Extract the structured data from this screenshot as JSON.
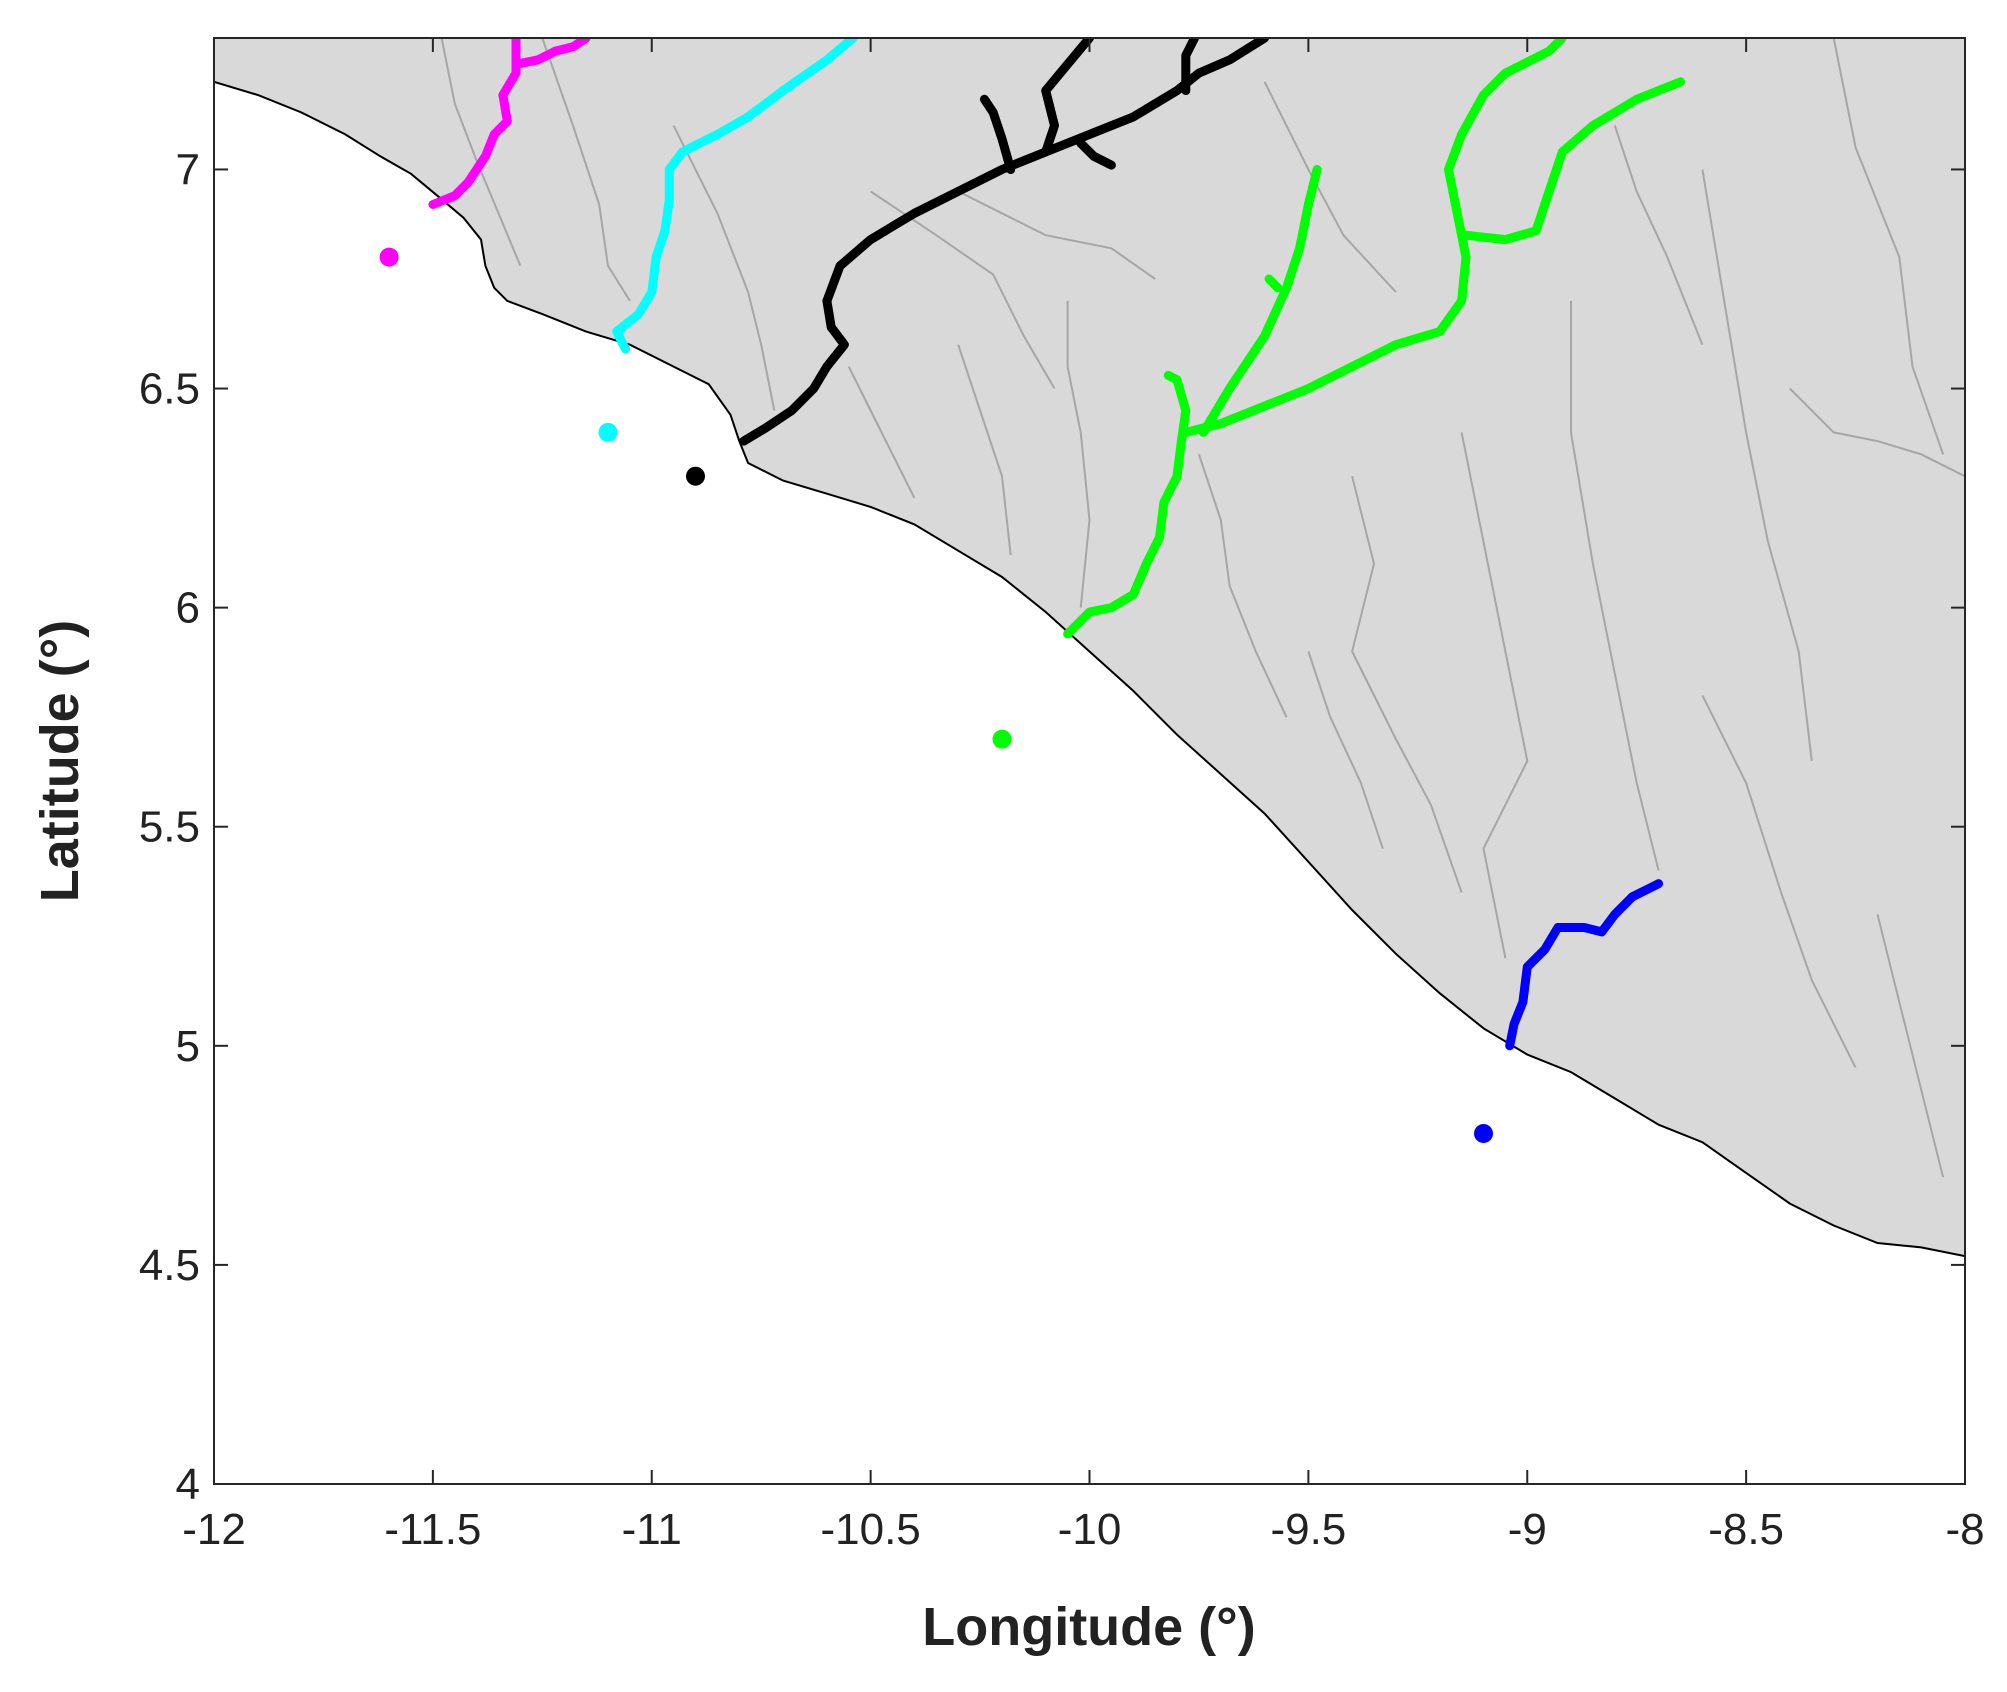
{
  "chart_data": {
    "type": "map",
    "xlabel": "Longitude (°)",
    "ylabel": "Latitude (°)",
    "xlim": [
      -12,
      -8
    ],
    "ylim": [
      4,
      7.3
    ],
    "xticks": [
      -12,
      -11.5,
      -11,
      -10.5,
      -10,
      -9.5,
      -9,
      -8.5,
      -8
    ],
    "xtick_labels": [
      "-12",
      "-11.5",
      "-11",
      "-10.5",
      "-10",
      "-9.5",
      "-9",
      "-8.5",
      "-8"
    ],
    "yticks": [
      4,
      4.5,
      5,
      5.5,
      6,
      6.5,
      7
    ],
    "ytick_labels": [
      "4",
      "4.5",
      "5",
      "5.5",
      "6",
      "6.5",
      "7"
    ],
    "grid": false,
    "land_color": "#d9d9d9",
    "coastline_color": "#000000",
    "minor_river_color": "#a6a6a6",
    "coastline": [
      [
        -12.0,
        7.2
      ],
      [
        -11.9,
        7.17
      ],
      [
        -11.8,
        7.13
      ],
      [
        -11.7,
        7.08
      ],
      [
        -11.62,
        7.03
      ],
      [
        -11.55,
        6.99
      ],
      [
        -11.49,
        6.94
      ],
      [
        -11.43,
        6.89
      ],
      [
        -11.39,
        6.84
      ],
      [
        -11.38,
        6.78
      ],
      [
        -11.36,
        6.73
      ],
      [
        -11.33,
        6.7
      ],
      [
        -11.25,
        6.67
      ],
      [
        -11.15,
        6.63
      ],
      [
        -11.05,
        6.6
      ],
      [
        -10.95,
        6.55
      ],
      [
        -10.87,
        6.51
      ],
      [
        -10.82,
        6.44
      ],
      [
        -10.8,
        6.38
      ],
      [
        -10.78,
        6.33
      ],
      [
        -10.7,
        6.29
      ],
      [
        -10.6,
        6.26
      ],
      [
        -10.5,
        6.23
      ],
      [
        -10.4,
        6.19
      ],
      [
        -10.3,
        6.13
      ],
      [
        -10.2,
        6.07
      ],
      [
        -10.1,
        5.99
      ],
      [
        -10.0,
        5.9
      ],
      [
        -9.9,
        5.81
      ],
      [
        -9.8,
        5.71
      ],
      [
        -9.7,
        5.62
      ],
      [
        -9.6,
        5.53
      ],
      [
        -9.5,
        5.42
      ],
      [
        -9.4,
        5.31
      ],
      [
        -9.3,
        5.21
      ],
      [
        -9.2,
        5.12
      ],
      [
        -9.1,
        5.04
      ],
      [
        -9.0,
        4.98
      ],
      [
        -8.9,
        4.94
      ],
      [
        -8.8,
        4.88
      ],
      [
        -8.7,
        4.82
      ],
      [
        -8.6,
        4.78
      ],
      [
        -8.5,
        4.71
      ],
      [
        -8.4,
        4.64
      ],
      [
        -8.3,
        4.59
      ],
      [
        -8.2,
        4.55
      ],
      [
        -8.1,
        4.54
      ],
      [
        -8.0,
        4.52
      ]
    ],
    "minor_rivers": [
      [
        [
          -11.48,
          7.3
        ],
        [
          -11.45,
          7.15
        ],
        [
          -11.4,
          7.02
        ],
        [
          -11.35,
          6.9
        ],
        [
          -11.3,
          6.78
        ]
      ],
      [
        [
          -11.25,
          7.3
        ],
        [
          -11.18,
          7.1
        ],
        [
          -11.12,
          6.92
        ],
        [
          -11.1,
          6.78
        ],
        [
          -11.05,
          6.7
        ]
      ],
      [
        [
          -10.95,
          7.1
        ],
        [
          -10.85,
          6.9
        ],
        [
          -10.78,
          6.72
        ],
        [
          -10.75,
          6.6
        ],
        [
          -10.72,
          6.45
        ]
      ],
      [
        [
          -10.5,
          6.95
        ],
        [
          -10.35,
          6.85
        ],
        [
          -10.22,
          6.76
        ],
        [
          -10.15,
          6.62
        ],
        [
          -10.08,
          6.5
        ]
      ],
      [
        [
          -10.55,
          6.55
        ],
        [
          -10.5,
          6.45
        ],
        [
          -10.45,
          6.35
        ],
        [
          -10.4,
          6.25
        ]
      ],
      [
        [
          -10.3,
          6.6
        ],
        [
          -10.25,
          6.45
        ],
        [
          -10.2,
          6.3
        ],
        [
          -10.18,
          6.12
        ]
      ],
      [
        [
          -10.05,
          6.7
        ],
        [
          -10.05,
          6.55
        ],
        [
          -10.02,
          6.4
        ],
        [
          -10.0,
          6.2
        ],
        [
          -10.02,
          6.0
        ]
      ],
      [
        [
          -9.75,
          6.35
        ],
        [
          -9.7,
          6.2
        ],
        [
          -9.68,
          6.05
        ],
        [
          -9.62,
          5.9
        ],
        [
          -9.55,
          5.75
        ]
      ],
      [
        [
          -9.4,
          6.3
        ],
        [
          -9.35,
          6.1
        ],
        [
          -9.4,
          5.9
        ],
        [
          -9.3,
          5.7
        ],
        [
          -9.22,
          5.55
        ],
        [
          -9.15,
          5.35
        ]
      ],
      [
        [
          -9.15,
          6.4
        ],
        [
          -9.1,
          6.15
        ],
        [
          -9.05,
          5.9
        ],
        [
          -9.0,
          5.65
        ],
        [
          -9.1,
          5.45
        ],
        [
          -9.05,
          5.2
        ]
      ],
      [
        [
          -8.9,
          6.7
        ],
        [
          -8.9,
          6.4
        ],
        [
          -8.85,
          6.1
        ],
        [
          -8.8,
          5.85
        ],
        [
          -8.75,
          5.6
        ],
        [
          -8.7,
          5.4
        ]
      ],
      [
        [
          -8.6,
          7.0
        ],
        [
          -8.55,
          6.7
        ],
        [
          -8.5,
          6.4
        ],
        [
          -8.45,
          6.15
        ],
        [
          -8.38,
          5.9
        ],
        [
          -8.35,
          5.65
        ]
      ],
      [
        [
          -8.3,
          7.3
        ],
        [
          -8.25,
          7.05
        ],
        [
          -8.15,
          6.8
        ],
        [
          -8.12,
          6.55
        ],
        [
          -8.05,
          6.35
        ]
      ],
      [
        [
          -8.4,
          6.5
        ],
        [
          -8.3,
          6.4
        ],
        [
          -8.2,
          6.38
        ],
        [
          -8.1,
          6.35
        ],
        [
          -8.0,
          6.3
        ]
      ],
      [
        [
          -8.6,
          5.8
        ],
        [
          -8.5,
          5.6
        ],
        [
          -8.42,
          5.35
        ],
        [
          -8.35,
          5.15
        ],
        [
          -8.25,
          4.95
        ]
      ],
      [
        [
          -8.2,
          5.3
        ],
        [
          -8.15,
          5.1
        ],
        [
          -8.1,
          4.9
        ],
        [
          -8.05,
          4.7
        ]
      ],
      [
        [
          -9.5,
          5.9
        ],
        [
          -9.45,
          5.75
        ],
        [
          -9.38,
          5.6
        ],
        [
          -9.33,
          5.45
        ]
      ],
      [
        [
          -10.3,
          6.95
        ],
        [
          -10.2,
          6.9
        ],
        [
          -10.1,
          6.85
        ],
        [
          -9.95,
          6.82
        ],
        [
          -9.85,
          6.75
        ]
      ],
      [
        [
          -9.6,
          7.2
        ],
        [
          -9.5,
          7.0
        ],
        [
          -9.42,
          6.85
        ],
        [
          -9.3,
          6.72
        ]
      ],
      [
        [
          -8.8,
          7.1
        ],
        [
          -8.75,
          6.95
        ],
        [
          -8.68,
          6.8
        ],
        [
          -8.6,
          6.6
        ]
      ]
    ],
    "series": [
      {
        "color": "#ff00ff",
        "point": [
          -11.6,
          6.8
        ],
        "paths": [
          [
            [
              -11.5,
              6.92
            ],
            [
              -11.45,
              6.94
            ],
            [
              -11.42,
              6.97
            ],
            [
              -11.38,
              7.03
            ],
            [
              -11.36,
              7.08
            ],
            [
              -11.33,
              7.11
            ],
            [
              -11.34,
              7.17
            ],
            [
              -11.31,
              7.22
            ],
            [
              -11.31,
              7.3
            ]
          ],
          [
            [
              -11.31,
              7.24
            ],
            [
              -11.26,
              7.25
            ],
            [
              -11.22,
              7.27
            ],
            [
              -11.18,
              7.28
            ],
            [
              -11.15,
              7.3
            ]
          ]
        ]
      },
      {
        "color": "#00ffff",
        "point": [
          -11.1,
          6.4
        ],
        "paths": [
          [
            [
              -11.06,
              6.59
            ],
            [
              -11.08,
              6.63
            ],
            [
              -11.03,
              6.67
            ],
            [
              -11.0,
              6.72
            ],
            [
              -10.99,
              6.8
            ],
            [
              -10.97,
              6.86
            ],
            [
              -10.96,
              6.93
            ],
            [
              -10.96,
              7.0
            ],
            [
              -10.93,
              7.04
            ],
            [
              -10.85,
              7.08
            ],
            [
              -10.78,
              7.12
            ],
            [
              -10.7,
              7.18
            ],
            [
              -10.6,
              7.25
            ],
            [
              -10.54,
              7.3
            ]
          ]
        ]
      },
      {
        "color": "#000000",
        "point": [
          -10.9,
          6.3
        ],
        "paths": [
          [
            [
              -10.79,
              6.38
            ],
            [
              -10.74,
              6.41
            ],
            [
              -10.68,
              6.45
            ],
            [
              -10.63,
              6.5
            ],
            [
              -10.6,
              6.55
            ],
            [
              -10.56,
              6.6
            ],
            [
              -10.59,
              6.64
            ],
            [
              -10.6,
              6.7
            ],
            [
              -10.57,
              6.78
            ],
            [
              -10.5,
              6.84
            ],
            [
              -10.4,
              6.9
            ],
            [
              -10.3,
              6.95
            ],
            [
              -10.2,
              7.0
            ],
            [
              -10.1,
              7.04
            ],
            [
              -10.0,
              7.08
            ],
            [
              -9.9,
              7.12
            ],
            [
              -9.8,
              7.18
            ],
            [
              -9.75,
              7.22
            ],
            [
              -9.68,
              7.25
            ],
            [
              -9.6,
              7.3
            ]
          ],
          [
            [
              -10.1,
              7.04
            ],
            [
              -10.08,
              7.1
            ],
            [
              -10.1,
              7.18
            ],
            [
              -10.05,
              7.24
            ],
            [
              -10.0,
              7.3
            ]
          ],
          [
            [
              -10.18,
              7.0
            ],
            [
              -10.2,
              7.07
            ],
            [
              -10.22,
              7.13
            ],
            [
              -10.24,
              7.16
            ]
          ],
          [
            [
              -10.02,
              7.06
            ],
            [
              -9.99,
              7.03
            ],
            [
              -9.95,
              7.01
            ]
          ],
          [
            [
              -9.78,
              7.18
            ],
            [
              -9.78,
              7.26
            ],
            [
              -9.76,
              7.3
            ]
          ]
        ]
      },
      {
        "color": "#00ff00",
        "point": [
          -10.2,
          5.7
        ],
        "paths": [
          [
            [
              -10.05,
              5.94
            ],
            [
              -10.0,
              5.99
            ],
            [
              -9.95,
              6.0
            ],
            [
              -9.9,
              6.03
            ],
            [
              -9.87,
              6.1
            ],
            [
              -9.84,
              6.16
            ],
            [
              -9.83,
              6.24
            ],
            [
              -9.8,
              6.3
            ],
            [
              -9.79,
              6.38
            ],
            [
              -9.78,
              6.45
            ],
            [
              -9.8,
              6.52
            ],
            [
              -9.82,
              6.53
            ]
          ],
          [
            [
              -9.78,
              6.4
            ],
            [
              -9.7,
              6.42
            ],
            [
              -9.6,
              6.46
            ],
            [
              -9.5,
              6.5
            ],
            [
              -9.4,
              6.55
            ],
            [
              -9.3,
              6.6
            ],
            [
              -9.2,
              6.63
            ],
            [
              -9.15,
              6.7
            ],
            [
              -9.14,
              6.8
            ],
            [
              -9.16,
              6.9
            ],
            [
              -9.18,
              7.0
            ],
            [
              -9.15,
              7.08
            ],
            [
              -9.1,
              7.17
            ],
            [
              -9.05,
              7.22
            ],
            [
              -8.95,
              7.27
            ],
            [
              -8.92,
              7.3
            ]
          ],
          [
            [
              -9.74,
              6.4
            ],
            [
              -9.68,
              6.5
            ],
            [
              -9.6,
              6.62
            ],
            [
              -9.55,
              6.73
            ],
            [
              -9.52,
              6.82
            ],
            [
              -9.5,
              6.92
            ],
            [
              -9.48,
              7.0
            ]
          ],
          [
            [
              -9.59,
              6.75
            ],
            [
              -9.57,
              6.73
            ]
          ],
          [
            [
              -9.14,
              6.85
            ],
            [
              -9.05,
              6.84
            ],
            [
              -8.98,
              6.86
            ],
            [
              -8.95,
              6.95
            ],
            [
              -8.92,
              7.04
            ],
            [
              -8.85,
              7.1
            ],
            [
              -8.75,
              7.16
            ],
            [
              -8.65,
              7.2
            ]
          ]
        ]
      },
      {
        "color": "#0000ff",
        "point": [
          -9.1,
          4.8
        ],
        "paths": [
          [
            [
              -9.04,
              5.0
            ],
            [
              -9.03,
              5.05
            ],
            [
              -9.01,
              5.1
            ],
            [
              -9.0,
              5.18
            ],
            [
              -8.96,
              5.22
            ],
            [
              -8.93,
              5.27
            ],
            [
              -8.87,
              5.27
            ],
            [
              -8.83,
              5.26
            ],
            [
              -8.8,
              5.3
            ],
            [
              -8.76,
              5.34
            ],
            [
              -8.7,
              5.37
            ]
          ]
        ]
      }
    ]
  }
}
